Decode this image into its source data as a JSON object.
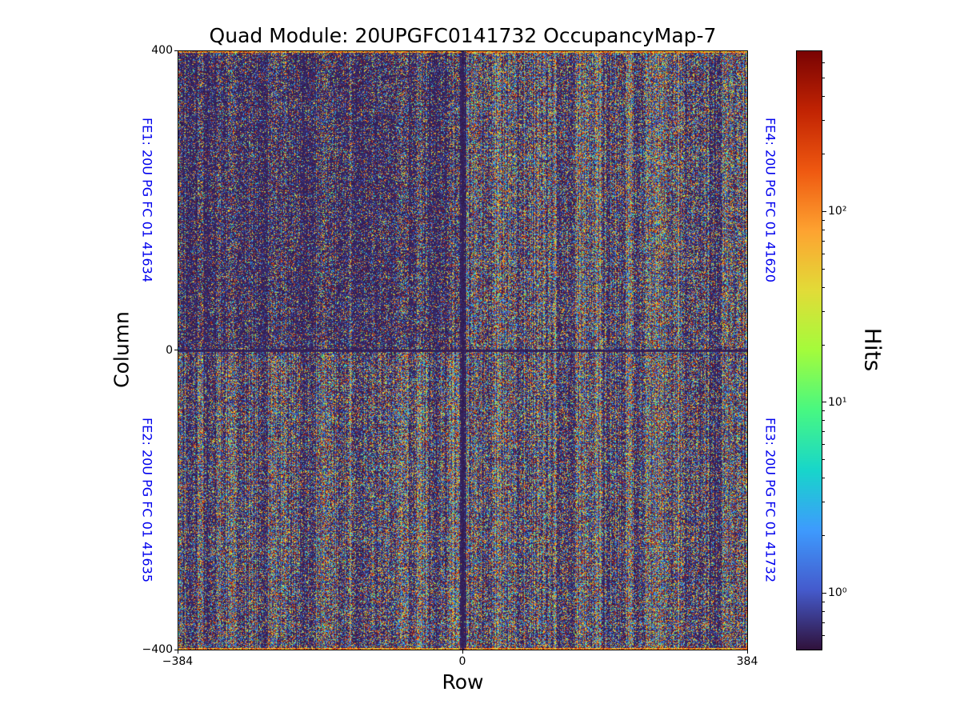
{
  "chart_data": {
    "type": "heatmap",
    "title": "Quad Module: 20UPGFC0141732 OccupancyMap-7",
    "xlabel": "Row",
    "ylabel": "Column",
    "colorbar_label": "Hits",
    "x_range": [
      -384,
      384
    ],
    "y_range": [
      -400,
      400
    ],
    "x_ticks": [
      {
        "value": -384,
        "label": "−384"
      },
      {
        "value": 0,
        "label": "0"
      },
      {
        "value": 384,
        "label": "384"
      }
    ],
    "y_ticks": [
      {
        "value": 400,
        "label": "400"
      },
      {
        "value": 0,
        "label": "0"
      },
      {
        "value": -400,
        "label": "−400"
      }
    ],
    "bins": {
      "x": 768,
      "y": 800
    },
    "color_scale": {
      "type": "log",
      "min": 0.5,
      "max": 700,
      "colormap": "turbo",
      "major_ticks": [
        {
          "value": 1,
          "label": "10⁰"
        },
        {
          "value": 10,
          "label": "10¹"
        },
        {
          "value": 100,
          "label": "10²"
        }
      ]
    },
    "fe_labels": [
      {
        "id": "FE1",
        "text": "FE1: 20U PG FC 01 41634",
        "position": "left-top"
      },
      {
        "id": "FE2",
        "text": "FE2: 20U PG FC 01 41635",
        "position": "left-bottom"
      },
      {
        "id": "FE3",
        "text": "FE3: 20U PG FC 01 41732",
        "position": "right-bottom"
      },
      {
        "id": "FE4",
        "text": "FE4: 20U PG FC 01 41620",
        "position": "right-top"
      }
    ],
    "appearance": {
      "description": "Dense salt-and-pepper occupancy noise across all four front-end quadrants with fine vertical column striping; upper-left (FE1) quadrant visibly sparser; dark seam lines along Row = 0 and Column = 0; bright dense band along top edge.",
      "background_value_color": "#30123b"
    },
    "colors": {
      "fe_label": "#0000ee",
      "axis": "#000000",
      "title": "#000000",
      "turbo_stops": [
        "#30123b",
        "#455bcd",
        "#3e9bfe",
        "#18d6cb",
        "#48f882",
        "#a4fc3c",
        "#e2dc38",
        "#fea331",
        "#ef5911",
        "#c22403",
        "#7a0403"
      ]
    }
  }
}
